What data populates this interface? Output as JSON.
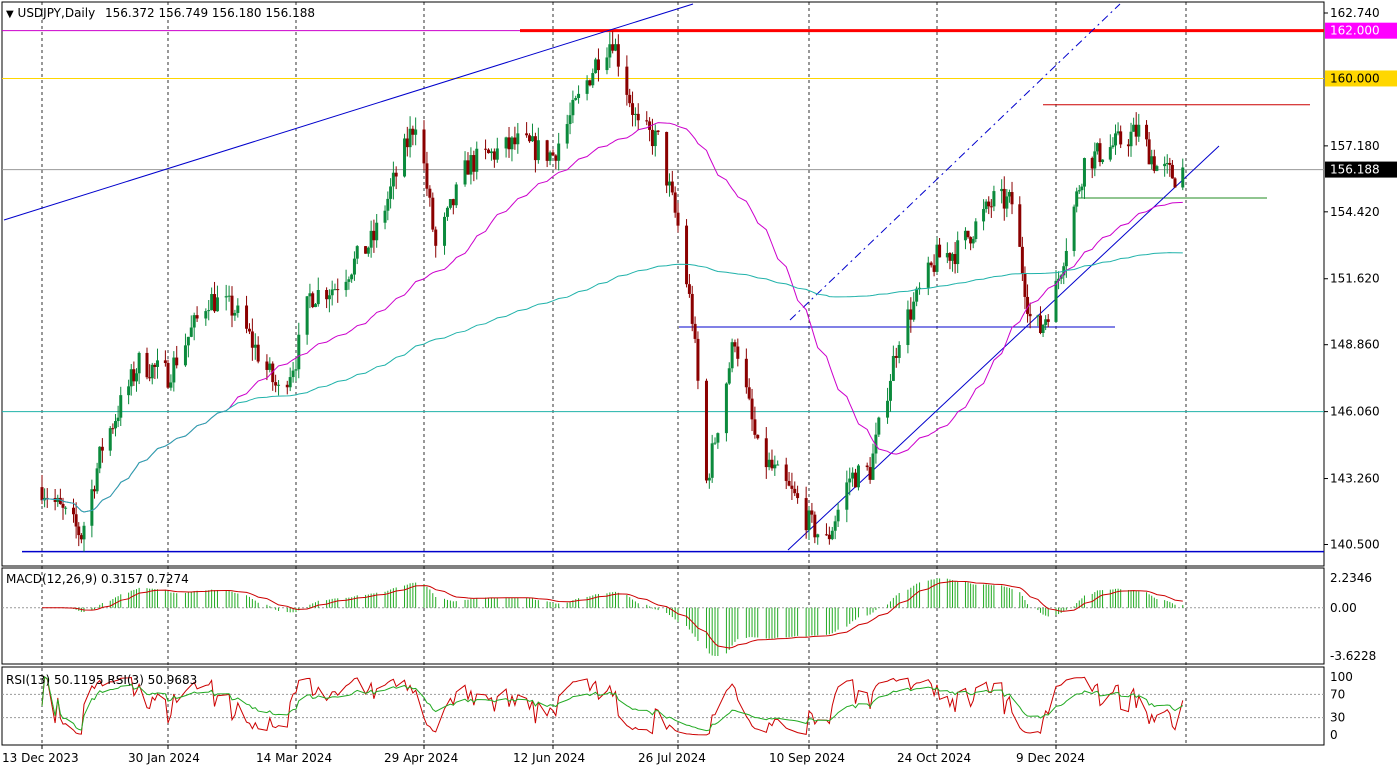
{
  "header": {
    "symbol_timeframe": "USDJPY,Daily",
    "ohlc": "156.372 156.749 156.180 156.188"
  },
  "colors": {
    "bull_candle": "#0b8a3c",
    "bear_candle": "#8b0000",
    "ma_short": "#cc00cc",
    "ma_long": "#20b2aa",
    "trend_blue": "#0000cc",
    "level_red": "#ff0000",
    "level_gold": "#ffd700",
    "level_magenta": "#cc00cc",
    "macd_hist": "#22aa22",
    "macd_signal": "#cc0000",
    "rsi13": "#22aa22",
    "rsi3": "#cc0000"
  },
  "price_axis": {
    "min": 139.6,
    "max": 163.2,
    "ticks": [
      "162.740",
      "157.180",
      "154.420",
      "151.620",
      "148.860",
      "146.060",
      "143.260",
      "140.500"
    ],
    "tick_values": [
      162.74,
      157.18,
      154.42,
      151.62,
      148.86,
      146.06,
      143.26,
      140.5
    ]
  },
  "price_tags": [
    {
      "label": "162.000",
      "value": 162.0,
      "bg": "#ff00ff",
      "fg": "#ffffff"
    },
    {
      "label": "160.000",
      "value": 160.0,
      "bg": "#ffd700",
      "fg": "#000000"
    },
    {
      "label": "156.188",
      "value": 156.188,
      "bg": "#000000",
      "fg": "#ffffff"
    }
  ],
  "date_labels": [
    "13 Dec 2023",
    "30 Jan 2024",
    "14 Mar 2024",
    "29 Apr 2024",
    "12 Jun 2024",
    "26 Jul 2024",
    "10 Sep 2024",
    "24 Oct 2024",
    "9 Dec 2024"
  ],
  "chart_data": {
    "type": "candlestick",
    "symbol": "USDJPY",
    "timeframe": "Daily",
    "x_dates": [
      "2023-12-13",
      "2024-01-30",
      "2024-03-14",
      "2024-04-29",
      "2024-06-12",
      "2024-07-26",
      "2024-09-10",
      "2024-10-24",
      "2024-12-09"
    ],
    "close_path": [
      [
        "2023-12-13",
        142.9
      ],
      [
        "2023-12-28",
        140.9
      ],
      [
        "2024-01-05",
        144.6
      ],
      [
        "2024-01-19",
        148.1
      ],
      [
        "2024-01-30",
        147.6
      ],
      [
        "2024-02-13",
        150.8
      ],
      [
        "2024-02-22",
        150.3
      ],
      [
        "2024-03-08",
        146.9
      ],
      [
        "2024-03-14",
        148.3
      ],
      [
        "2024-03-19",
        150.9
      ],
      [
        "2024-03-28",
        151.3
      ],
      [
        "2024-04-11",
        153.3
      ],
      [
        "2024-04-26",
        158.3
      ],
      [
        "2024-04-29",
        156.3
      ],
      [
        "2024-05-03",
        152.9
      ],
      [
        "2024-05-14",
        156.4
      ],
      [
        "2024-05-31",
        157.3
      ],
      [
        "2024-06-12",
        156.8
      ],
      [
        "2024-06-28",
        160.9
      ],
      [
        "2024-07-03",
        161.7
      ],
      [
        "2024-07-12",
        157.9
      ],
      [
        "2024-07-19",
        157.4
      ],
      [
        "2024-07-26",
        153.8
      ],
      [
        "2024-07-31",
        150.0
      ],
      [
        "2024-08-05",
        143.1
      ],
      [
        "2024-08-15",
        149.2
      ],
      [
        "2024-08-23",
        144.4
      ],
      [
        "2024-09-06",
        142.3
      ],
      [
        "2024-09-10",
        141.4
      ],
      [
        "2024-09-16",
        140.6
      ],
      [
        "2024-09-24",
        143.3
      ],
      [
        "2024-10-01",
        143.6
      ],
      [
        "2024-10-11",
        149.3
      ],
      [
        "2024-10-24",
        152.5
      ],
      [
        "2024-11-01",
        152.8
      ],
      [
        "2024-11-15",
        154.9
      ],
      [
        "2024-11-22",
        154.8
      ],
      [
        "2024-11-29",
        150.0
      ],
      [
        "2024-12-03",
        149.5
      ],
      [
        "2024-12-09",
        151.2
      ],
      [
        "2024-12-20",
        156.5
      ],
      [
        "2025-01-10",
        157.8
      ],
      [
        "2025-01-17",
        156.3
      ],
      [
        "2025-01-24",
        155.9
      ],
      [
        "2025-01-27",
        156.19
      ]
    ],
    "horizontal_levels": [
      162.0,
      160.0,
      158.9,
      156.188,
      155.0,
      149.6,
      146.06,
      140.2
    ],
    "indicators": [
      {
        "name": "MACD(12,26,9)",
        "values": [
          0.3157,
          0.7274
        ],
        "axis_ticks": [
          "2.2346",
          "0.00",
          "-3.6228"
        ],
        "axis_values": [
          2.2346,
          0.0,
          -3.6228
        ]
      },
      {
        "name": "RSI(13)",
        "value": 50.1195
      },
      {
        "name": "RSI(3)",
        "value": 50.9683,
        "axis_ticks": [
          "100",
          "70",
          "30",
          "0"
        ],
        "axis_values": [
          100,
          70,
          30,
          0
        ]
      }
    ]
  },
  "panes": {
    "macd_title": "MACD(12,26,9) 0.3157 0.7274",
    "rsi_title": "RSI(13) 50.1195  RSI(3) 50.9683"
  }
}
